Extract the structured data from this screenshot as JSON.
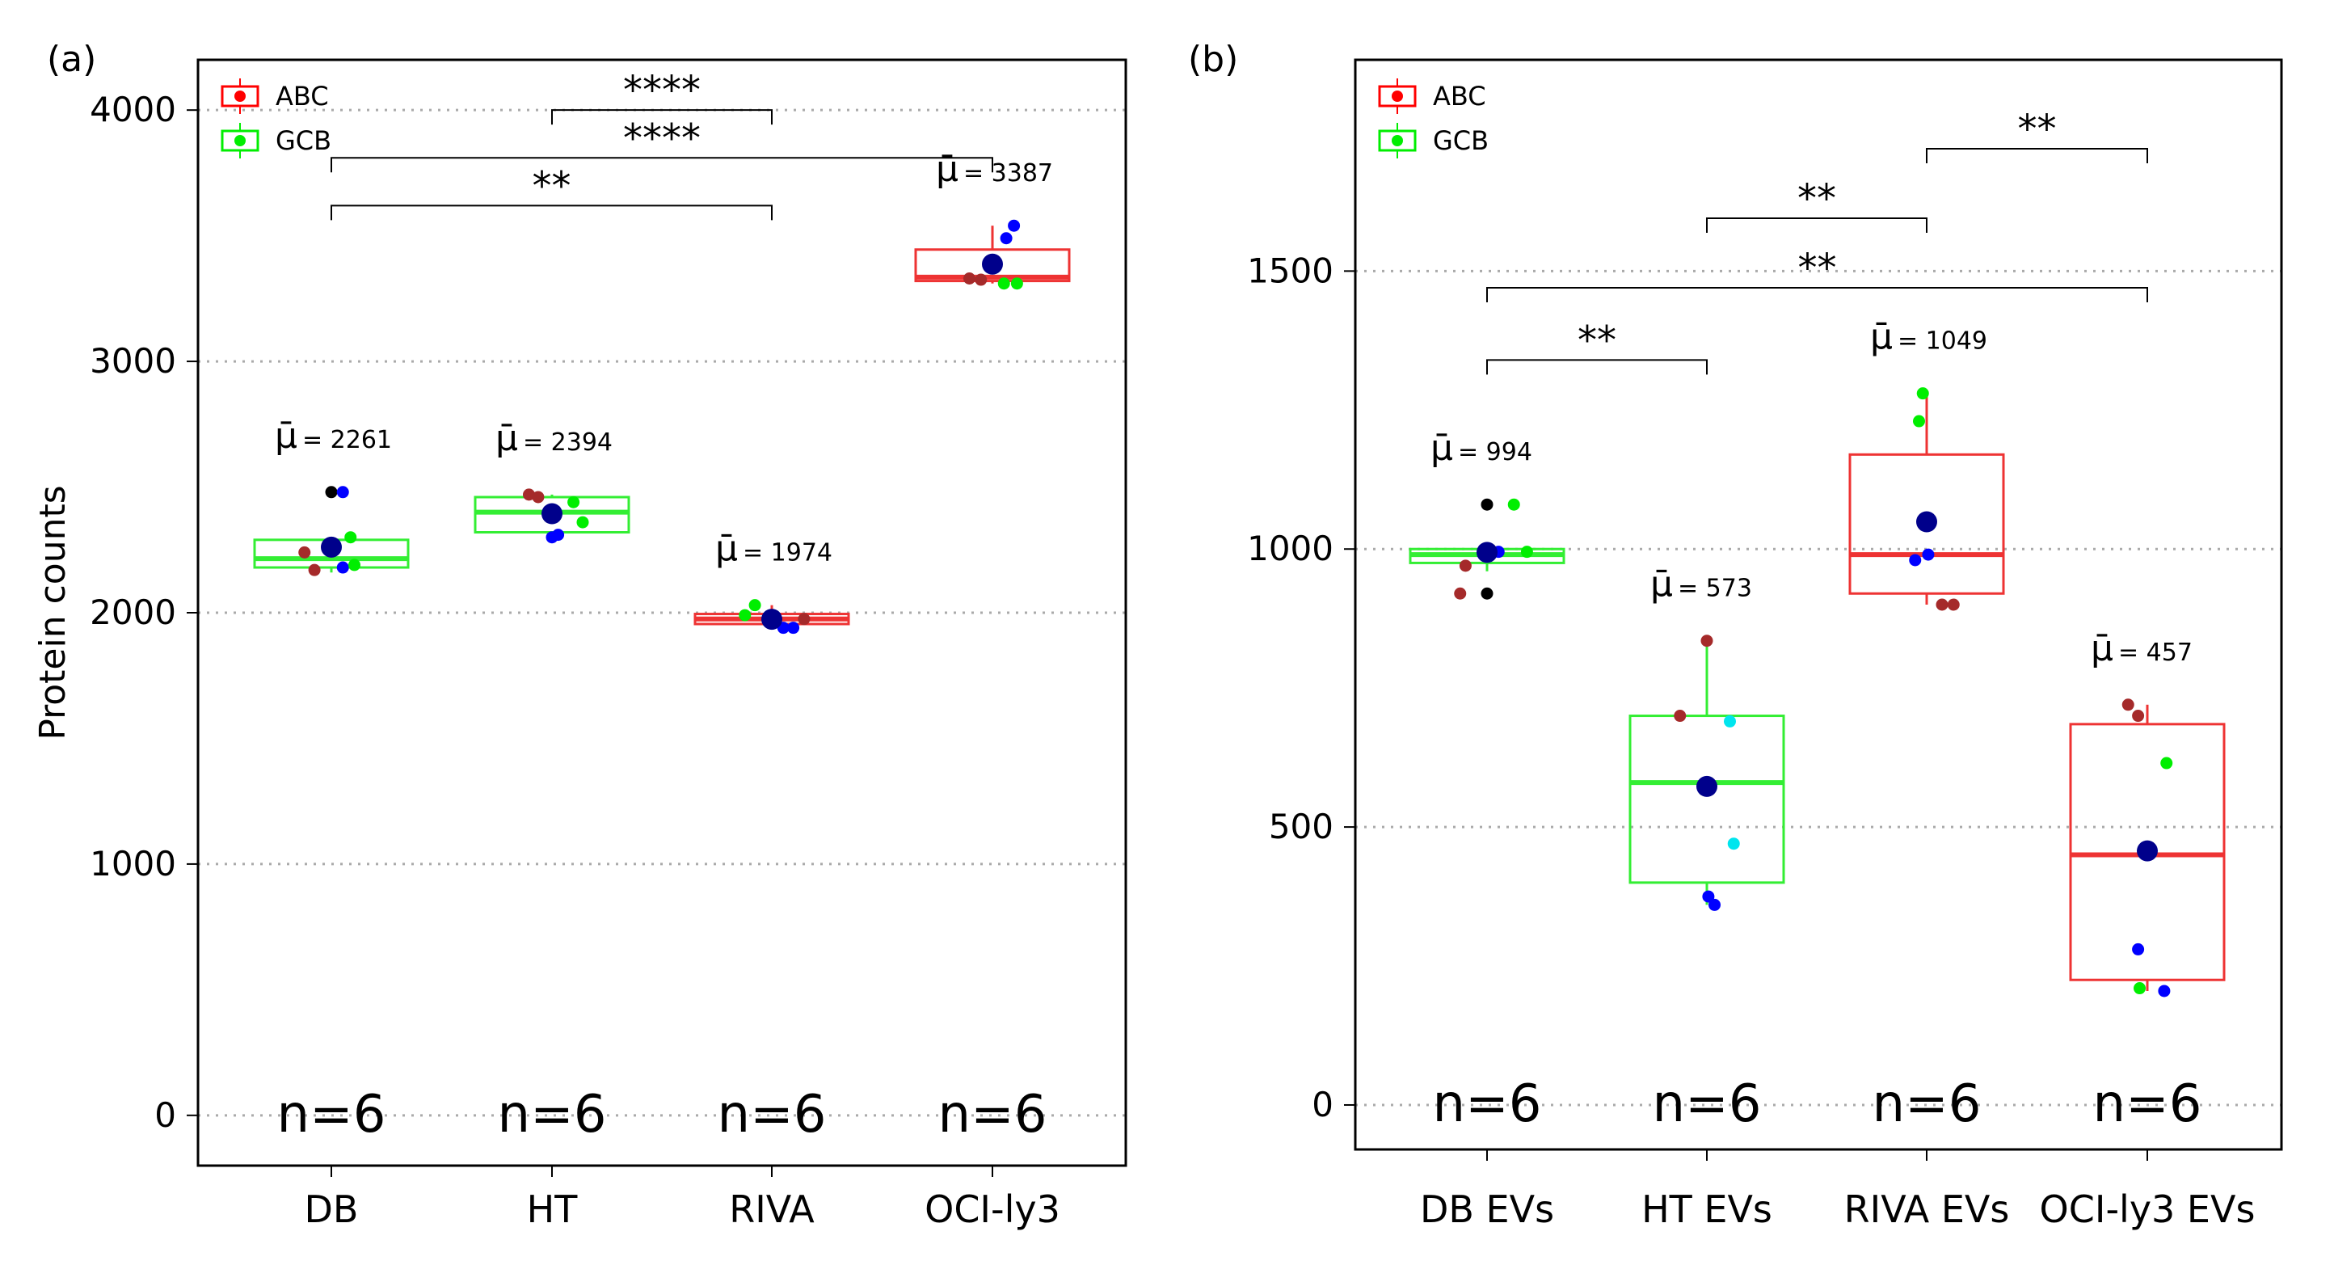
{
  "chart_data": [
    {
      "type": "box",
      "panel_label": "(a)",
      "ylabel": "Protein counts",
      "xlabel": "",
      "ylim": [
        -200,
        4200
      ],
      "yticks": [
        0,
        1000,
        2000,
        3000,
        4000
      ],
      "grid": "horizontal-dotted",
      "legend": {
        "position": "top-left",
        "entries": [
          {
            "label": "ABC",
            "color": "#ff0000"
          },
          {
            "label": "GCB",
            "color": "#00ee00"
          }
        ]
      },
      "categories": [
        "DB",
        "HT",
        "RIVA",
        "OCI-ly3"
      ],
      "n_labels": [
        "n=6",
        "n=6",
        "n=6",
        "n=6"
      ],
      "mean_labels": [
        "= 2261",
        "= 2394",
        "= 1974",
        "= 3387"
      ],
      "mean_symbol": "μ̄",
      "means": [
        2261,
        2394,
        1974,
        3387
      ],
      "boxes": [
        {
          "group": "GCB",
          "color": "#33ee33",
          "q1": 2180,
          "median": 2215,
          "q3": 2290,
          "whisker_low": 2160,
          "whisker_high": 2300
        },
        {
          "group": "GCB",
          "color": "#33ee33",
          "q1": 2320,
          "median": 2400,
          "q3": 2460,
          "whisker_low": 2300,
          "whisker_high": 2470
        },
        {
          "group": "ABC",
          "color": "#ee3333",
          "q1": 1955,
          "median": 1975,
          "q3": 1995,
          "whisker_low": 1940,
          "whisker_high": 2030
        },
        {
          "group": "ABC",
          "color": "#ee3333",
          "q1": 3320,
          "median": 3335,
          "q3": 3445,
          "whisker_low": 3310,
          "whisker_high": 3540
        }
      ],
      "points": [
        [
          {
            "dx": -0.35,
            "v": 2240,
            "c": "#a52a2a"
          },
          {
            "dx": -0.22,
            "v": 2170,
            "c": "#a52a2a"
          },
          {
            "dx": 0.0,
            "v": 2480,
            "c": "#000000"
          },
          {
            "dx": 0.15,
            "v": 2480,
            "c": "#0000ff"
          },
          {
            "dx": 0.15,
            "v": 2180,
            "c": "#0000ff"
          },
          {
            "dx": 0.25,
            "v": 2300,
            "c": "#00ee00"
          },
          {
            "dx": 0.3,
            "v": 2190,
            "c": "#00ee00"
          }
        ],
        [
          {
            "dx": -0.3,
            "v": 2470,
            "c": "#a52a2a"
          },
          {
            "dx": -0.18,
            "v": 2460,
            "c": "#a52a2a"
          },
          {
            "dx": 0.0,
            "v": 2300,
            "c": "#0000ff"
          },
          {
            "dx": 0.08,
            "v": 2310,
            "c": "#0000ff"
          },
          {
            "dx": 0.28,
            "v": 2440,
            "c": "#00ee00"
          },
          {
            "dx": 0.4,
            "v": 2360,
            "c": "#00ee00"
          }
        ],
        [
          {
            "dx": -0.35,
            "v": 1990,
            "c": "#00ee00"
          },
          {
            "dx": -0.22,
            "v": 2030,
            "c": "#00ee00"
          },
          {
            "dx": 0.15,
            "v": 1940,
            "c": "#0000ff"
          },
          {
            "dx": 0.28,
            "v": 1940,
            "c": "#0000ff"
          },
          {
            "dx": 0.42,
            "v": 1975,
            "c": "#a52a2a"
          }
        ],
        [
          {
            "dx": -0.3,
            "v": 3330,
            "c": "#a52a2a"
          },
          {
            "dx": -0.15,
            "v": 3325,
            "c": "#a52a2a"
          },
          {
            "dx": 0.18,
            "v": 3490,
            "c": "#0000ff"
          },
          {
            "dx": 0.28,
            "v": 3540,
            "c": "#0000ff"
          },
          {
            "dx": 0.15,
            "v": 3310,
            "c": "#00ee00"
          },
          {
            "dx": 0.32,
            "v": 3310,
            "c": "#00ee00"
          }
        ]
      ],
      "significance": [
        {
          "from": 1,
          "to": 2,
          "y": 4000,
          "label": "****"
        },
        {
          "from": 0,
          "to": 3,
          "y": 3810,
          "label": "****"
        },
        {
          "from": 0,
          "to": 2,
          "y": 3620,
          "label": "**"
        }
      ]
    },
    {
      "type": "box",
      "panel_label": "(b)",
      "ylabel": "",
      "xlabel": "",
      "ylim": [
        -80,
        1880
      ],
      "yticks": [
        0,
        500,
        1000,
        1500
      ],
      "grid": "horizontal-dotted",
      "legend": {
        "position": "top-left",
        "entries": [
          {
            "label": "ABC",
            "color": "#ff0000"
          },
          {
            "label": "GCB",
            "color": "#00ee00"
          }
        ]
      },
      "categories": [
        "DB EVs",
        "HT EVs",
        "RIVA EVs",
        "OCI-ly3 EVs"
      ],
      "n_labels": [
        "n=6",
        "n=6",
        "n=6",
        "n=6"
      ],
      "mean_labels": [
        "= 994",
        "= 573",
        "= 1049",
        "= 457"
      ],
      "mean_symbol": "μ̄",
      "means": [
        994,
        573,
        1049,
        457
      ],
      "boxes": [
        {
          "group": "GCB",
          "color": "#33ee33",
          "q1": 975,
          "median": 990,
          "q3": 1000,
          "whisker_low": 960,
          "whisker_high": 1000
        },
        {
          "group": "GCB",
          "color": "#33ee33",
          "q1": 400,
          "median": 580,
          "q3": 700,
          "whisker_low": 360,
          "whisker_high": 835
        },
        {
          "group": "ABC",
          "color": "#ee3333",
          "q1": 920,
          "median": 990,
          "q3": 1170,
          "whisker_low": 900,
          "whisker_high": 1280
        },
        {
          "group": "ABC",
          "color": "#ee3333",
          "q1": 225,
          "median": 450,
          "q3": 685,
          "whisker_low": 205,
          "whisker_high": 720
        }
      ],
      "points": [
        [
          {
            "dx": -0.35,
            "v": 920,
            "c": "#a52a2a"
          },
          {
            "dx": -0.28,
            "v": 970,
            "c": "#a52a2a"
          },
          {
            "dx": 0.0,
            "v": 1080,
            "c": "#000000"
          },
          {
            "dx": 0.0,
            "v": 920,
            "c": "#000000"
          },
          {
            "dx": 0.15,
            "v": 995,
            "c": "#0000ff"
          },
          {
            "dx": 0.35,
            "v": 1080,
            "c": "#00ee00"
          },
          {
            "dx": 0.52,
            "v": 995,
            "c": "#00ee00"
          }
        ],
        [
          {
            "dx": -0.35,
            "v": 700,
            "c": "#a52a2a"
          },
          {
            "dx": 0.0,
            "v": 835,
            "c": "#a52a2a"
          },
          {
            "dx": 0.02,
            "v": 375,
            "c": "#0000ff"
          },
          {
            "dx": 0.1,
            "v": 360,
            "c": "#0000ff"
          },
          {
            "dx": 0.3,
            "v": 690,
            "c": "#00e5ee"
          },
          {
            "dx": 0.35,
            "v": 470,
            "c": "#00e5ee"
          }
        ],
        [
          {
            "dx": -0.1,
            "v": 1230,
            "c": "#00ee00"
          },
          {
            "dx": -0.05,
            "v": 1280,
            "c": "#00ee00"
          },
          {
            "dx": -0.15,
            "v": 980,
            "c": "#0000ff"
          },
          {
            "dx": 0.02,
            "v": 990,
            "c": "#0000ff"
          },
          {
            "dx": 0.2,
            "v": 900,
            "c": "#a52a2a"
          },
          {
            "dx": 0.35,
            "v": 900,
            "c": "#a52a2a"
          }
        ],
        [
          {
            "dx": -0.25,
            "v": 720,
            "c": "#a52a2a"
          },
          {
            "dx": -0.12,
            "v": 700,
            "c": "#a52a2a"
          },
          {
            "dx": 0.25,
            "v": 615,
            "c": "#00ee00"
          },
          {
            "dx": -0.1,
            "v": 210,
            "c": "#00ee00"
          },
          {
            "dx": -0.12,
            "v": 280,
            "c": "#0000ff"
          },
          {
            "dx": 0.22,
            "v": 205,
            "c": "#0000ff"
          }
        ]
      ],
      "significance": [
        {
          "from": 2,
          "to": 3,
          "y": 1720,
          "label": "**"
        },
        {
          "from": 1,
          "to": 2,
          "y": 1595,
          "label": "**"
        },
        {
          "from": 0,
          "to": 3,
          "y": 1470,
          "label": "**"
        },
        {
          "from": 0,
          "to": 1,
          "y": 1340,
          "label": "**"
        }
      ]
    }
  ]
}
